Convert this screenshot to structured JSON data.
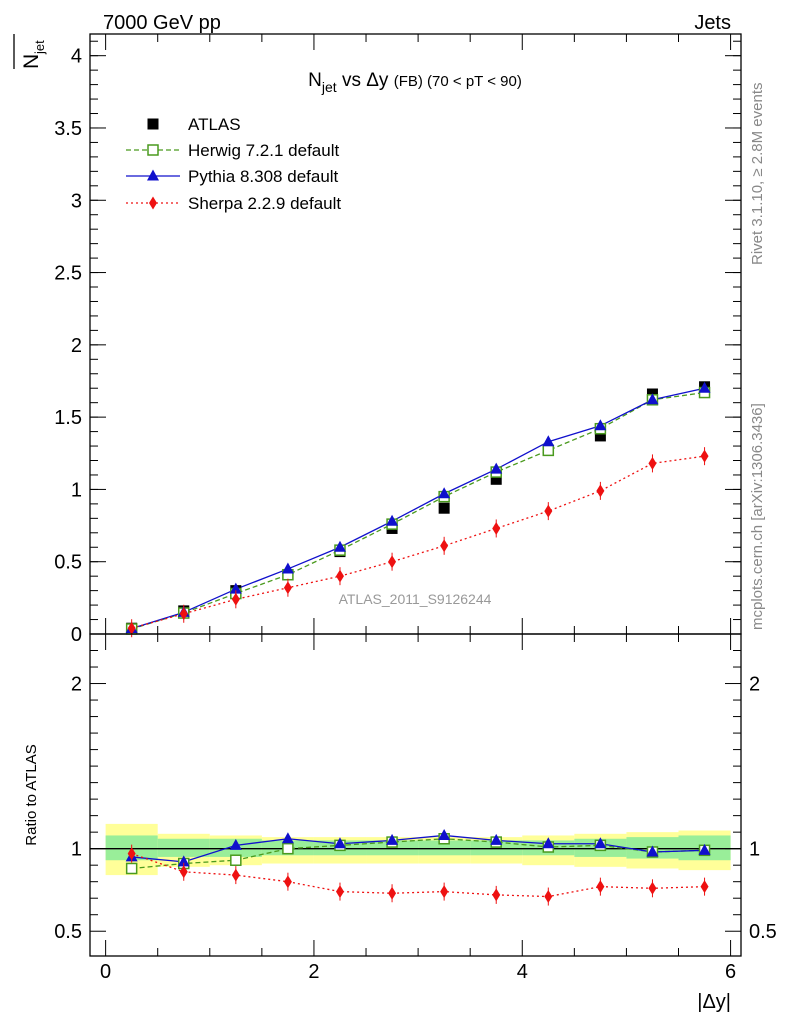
{
  "header": {
    "left": "7000 GeV pp",
    "right": "Jets"
  },
  "side_labels": {
    "rivet": "Rivet 3.1.10, ≥ 2.8M events",
    "mcplots": "mcplots.cern.ch [arXiv:1306.3436]"
  },
  "title": {
    "n": "N",
    "jet_sub": "jet",
    "vs": " vs Δy ",
    "fb": "(FB)",
    "range": " (70 < pT <  90)"
  },
  "analysis_tag": "ATLAS_2011_S9126244",
  "colors": {
    "atlas": "#000000",
    "herwig": "#4a9a1e",
    "pythia": "#1010cc",
    "sherpa": "#ee1111",
    "band_green": "#99ee99",
    "band_yellow": "#ffff99"
  },
  "chart_data": [
    {
      "type": "line",
      "panel": "main",
      "ylabel_main": "N",
      "ylabel_bar": "jet",
      "xlim": [
        -0.15,
        6.1
      ],
      "ylim": [
        0,
        4.15
      ],
      "yticks": [
        "0",
        "0.5",
        "1",
        "1.5",
        "2",
        "2.5",
        "3",
        "3.5",
        "4"
      ],
      "x": [
        0.25,
        0.75,
        1.25,
        1.75,
        2.25,
        2.75,
        3.25,
        3.75,
        4.25,
        4.75,
        5.25,
        5.75
      ],
      "legend": [
        "ATLAS",
        "Herwig 7.2.1 default",
        "Pythia 8.308 default",
        "Sherpa 2.2.9 default"
      ],
      "series": [
        {
          "name": "ATLAS",
          "values": [
            0.04,
            0.16,
            0.3,
            0.41,
            0.57,
            0.73,
            0.87,
            1.07,
            1.27,
            1.37,
            1.66,
            1.71
          ]
        },
        {
          "name": "Herwig 7.2.1 default",
          "values": [
            0.035,
            0.145,
            0.28,
            0.41,
            0.58,
            0.76,
            0.95,
            1.12,
            1.27,
            1.42,
            1.62,
            1.67
          ]
        },
        {
          "name": "Pythia 8.308 default",
          "values": [
            0.038,
            0.15,
            0.31,
            0.45,
            0.6,
            0.78,
            0.97,
            1.14,
            1.33,
            1.44,
            1.62,
            1.7
          ]
        },
        {
          "name": "Sherpa 2.2.9 default",
          "values": [
            0.04,
            0.14,
            0.24,
            0.32,
            0.4,
            0.5,
            0.61,
            0.73,
            0.85,
            0.99,
            1.18,
            1.23
          ]
        }
      ]
    },
    {
      "type": "line",
      "panel": "ratio",
      "ylabel": "Ratio to ATLAS",
      "xlabel": "|Δy|",
      "xlim": [
        -0.15,
        6.1
      ],
      "ylim": [
        0.35,
        2.3
      ],
      "yticks": [
        "0.5",
        "1",
        "2"
      ],
      "xticks": [
        "0",
        "2",
        "4",
        "6"
      ],
      "x": [
        0.25,
        0.75,
        1.25,
        1.75,
        2.25,
        2.75,
        3.25,
        3.75,
        4.25,
        4.75,
        5.25,
        5.75
      ],
      "band_edges": [
        0,
        0.5,
        1,
        1.5,
        2,
        2.5,
        3,
        3.5,
        4,
        4.5,
        5,
        5.5,
        6
      ],
      "band_green": [
        [
          0.93,
          1.08
        ],
        [
          0.95,
          1.06
        ],
        [
          0.95,
          1.06
        ],
        [
          0.96,
          1.05
        ],
        [
          0.96,
          1.05
        ],
        [
          0.96,
          1.05
        ],
        [
          0.96,
          1.05
        ],
        [
          0.96,
          1.05
        ],
        [
          0.96,
          1.05
        ],
        [
          0.95,
          1.06
        ],
        [
          0.94,
          1.07
        ],
        [
          0.93,
          1.08
        ]
      ],
      "band_yellow": [
        [
          0.84,
          1.15
        ],
        [
          0.89,
          1.09
        ],
        [
          0.9,
          1.08
        ],
        [
          0.91,
          1.07
        ],
        [
          0.91,
          1.07
        ],
        [
          0.91,
          1.07
        ],
        [
          0.91,
          1.07
        ],
        [
          0.91,
          1.07
        ],
        [
          0.9,
          1.08
        ],
        [
          0.89,
          1.09
        ],
        [
          0.88,
          1.1
        ],
        [
          0.87,
          1.11
        ]
      ],
      "series": [
        {
          "name": "Herwig 7.2.1 default",
          "values": [
            0.88,
            0.91,
            0.93,
            1.0,
            1.02,
            1.04,
            1.06,
            1.04,
            1.01,
            1.02,
            0.98,
            0.99
          ]
        },
        {
          "name": "Pythia 8.308 default",
          "values": [
            0.95,
            0.92,
            1.02,
            1.06,
            1.03,
            1.05,
            1.08,
            1.05,
            1.03,
            1.03,
            0.98,
            0.99
          ]
        },
        {
          "name": "Sherpa 2.2.9 default",
          "values": [
            0.97,
            0.86,
            0.84,
            0.8,
            0.74,
            0.73,
            0.74,
            0.72,
            0.71,
            0.77,
            0.76,
            0.77
          ]
        }
      ]
    }
  ]
}
